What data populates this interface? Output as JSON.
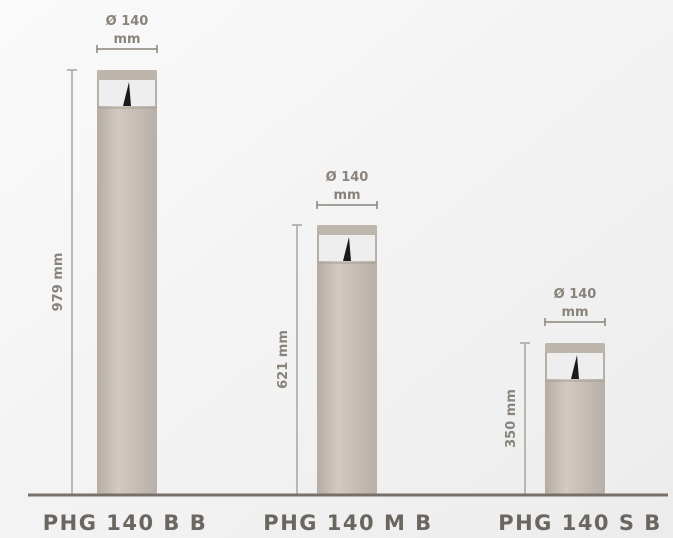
{
  "products": [
    {
      "name": "PHG 140 B B",
      "height": "979 mm",
      "diameter": "Ø 140",
      "diameter_unit": "mm"
    },
    {
      "name": "PHG 140 M B",
      "height": "621 mm",
      "diameter": "Ø 140",
      "diameter_unit": "mm"
    },
    {
      "name": "PHG 140 S B",
      "height": "350 mm",
      "diameter": "Ø 140",
      "diameter_unit": "mm"
    }
  ]
}
